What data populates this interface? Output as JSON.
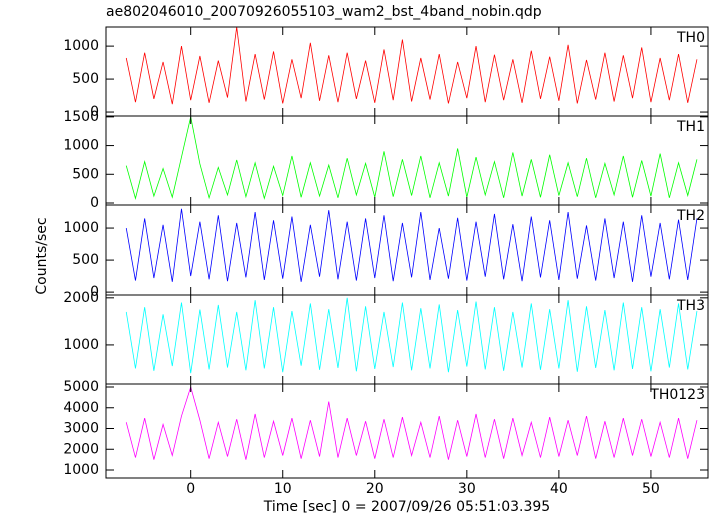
{
  "chart_data": {
    "type": "line",
    "title": "ae802046010_20070926055103_wam2_bst_4band_nobin.qdp",
    "xlabel": "Time [sec] 0 = 2007/09/26 05:51:03.395",
    "ylabel": "Counts/sec",
    "xlim": [
      -9.2,
      56.2
    ],
    "xticks": [
      0,
      10,
      20,
      30,
      40,
      50
    ],
    "x": [
      -7,
      -6,
      -5,
      -4,
      -3,
      -2,
      -1,
      0,
      1,
      2,
      3,
      4,
      5,
      6,
      7,
      8,
      9,
      10,
      11,
      12,
      13,
      14,
      15,
      16,
      17,
      18,
      19,
      20,
      21,
      22,
      23,
      24,
      25,
      26,
      27,
      28,
      29,
      30,
      31,
      32,
      33,
      34,
      35,
      36,
      37,
      38,
      39,
      40,
      41,
      42,
      43,
      44,
      45,
      46,
      47,
      48,
      49,
      50,
      51,
      52,
      53,
      54,
      55
    ],
    "series": [
      {
        "name": "TH0",
        "color": "#ff0000",
        "ylim": [
          -60,
          1290
        ],
        "yticks": [
          0,
          500,
          1000
        ],
        "values": [
          820,
          150,
          900,
          200,
          760,
          120,
          1000,
          180,
          850,
          140,
          780,
          220,
          1290,
          160,
          880,
          190,
          920,
          130,
          800,
          210,
          1050,
          170,
          860,
          150,
          900,
          200,
          780,
          140,
          950,
          180,
          1100,
          160,
          820,
          190,
          880,
          130,
          760,
          210,
          1000,
          150,
          870,
          180,
          800,
          140,
          930,
          200,
          840,
          170,
          1020,
          130,
          790,
          190,
          900,
          160,
          860,
          210,
          980,
          150,
          820,
          180,
          880,
          140,
          800
        ]
      },
      {
        "name": "TH1",
        "color": "#00ff00",
        "ylim": [
          -35,
          1515
        ],
        "yticks": [
          0,
          500,
          1000,
          1500
        ],
        "values": [
          650,
          80,
          720,
          120,
          600,
          100,
          800,
          1500,
          680,
          90,
          620,
          140,
          750,
          110,
          700,
          80,
          640,
          130,
          820,
          100,
          700,
          120,
          660,
          90,
          780,
          140,
          690,
          100,
          900,
          110,
          760,
          130,
          820,
          90,
          700,
          120,
          950,
          100,
          800,
          140,
          720,
          90,
          880,
          120,
          760,
          100,
          840,
          130,
          700,
          110,
          780,
          90,
          690,
          140,
          820,
          100,
          740,
          120,
          860,
          90,
          700,
          130,
          760
        ]
      },
      {
        "name": "TH2",
        "color": "#0000ff",
        "ylim": [
          -45,
          1360
        ],
        "yticks": [
          0,
          500,
          1000
        ],
        "values": [
          1000,
          180,
          1150,
          220,
          1050,
          160,
          1300,
          250,
          1100,
          200,
          1200,
          170,
          1080,
          230,
          1250,
          190,
          1120,
          210,
          1180,
          160,
          1050,
          240,
          1280,
          200,
          1100,
          180,
          1150,
          220,
          1200,
          170,
          1080,
          230,
          1250,
          190,
          1000,
          210,
          1160,
          180,
          1100,
          240,
          1220,
          200,
          1060,
          170,
          1180,
          230,
          1120,
          190,
          1250,
          210,
          1040,
          180,
          1150,
          220,
          1100,
          160,
          1200,
          240,
          1080,
          200,
          1130,
          190,
          1150
        ]
      },
      {
        "name": "TH3",
        "color": "#00ffff",
        "ylim": [
          170,
          2060
        ],
        "yticks": [
          1000,
          2000
        ],
        "values": [
          1700,
          500,
          1800,
          450,
          1650,
          550,
          1900,
          400,
          1750,
          480,
          1850,
          520,
          1700,
          460,
          1950,
          500,
          1800,
          420,
          1720,
          560,
          1880,
          470,
          1760,
          510,
          2000,
          440,
          1820,
          490,
          1700,
          530,
          1900,
          460,
          1780,
          500,
          1860,
          420,
          1740,
          540,
          1920,
          480,
          1800,
          450,
          1700,
          520,
          1880,
          470,
          1760,
          500,
          1950,
          430,
          1820,
          510,
          1740,
          460,
          1900,
          490,
          1800,
          440,
          1760,
          520,
          1880,
          480,
          1720
        ]
      },
      {
        "name": "TH0123",
        "color": "#ff00ff",
        "ylim": [
          615,
          5145
        ],
        "yticks": [
          1000,
          2000,
          3000,
          4000,
          5000
        ],
        "values": [
          3300,
          1600,
          3500,
          1500,
          3200,
          1700,
          3600,
          5000,
          3400,
          1550,
          3300,
          1650,
          3450,
          1500,
          3700,
          1600,
          3350,
          1700,
          3500,
          1550,
          3400,
          1650,
          4300,
          1600,
          3500,
          1700,
          3350,
          1550,
          3450,
          1600,
          3550,
          1700,
          3300,
          1600,
          3600,
          1500,
          3400,
          1650,
          3700,
          1600,
          3450,
          1550,
          3500,
          1700,
          3300,
          1600,
          3550,
          1650,
          3400,
          1700,
          3600,
          1550,
          3350,
          1600,
          3500,
          1700,
          3450,
          1650,
          3300,
          1600,
          3500,
          1550,
          3400
        ]
      }
    ]
  }
}
